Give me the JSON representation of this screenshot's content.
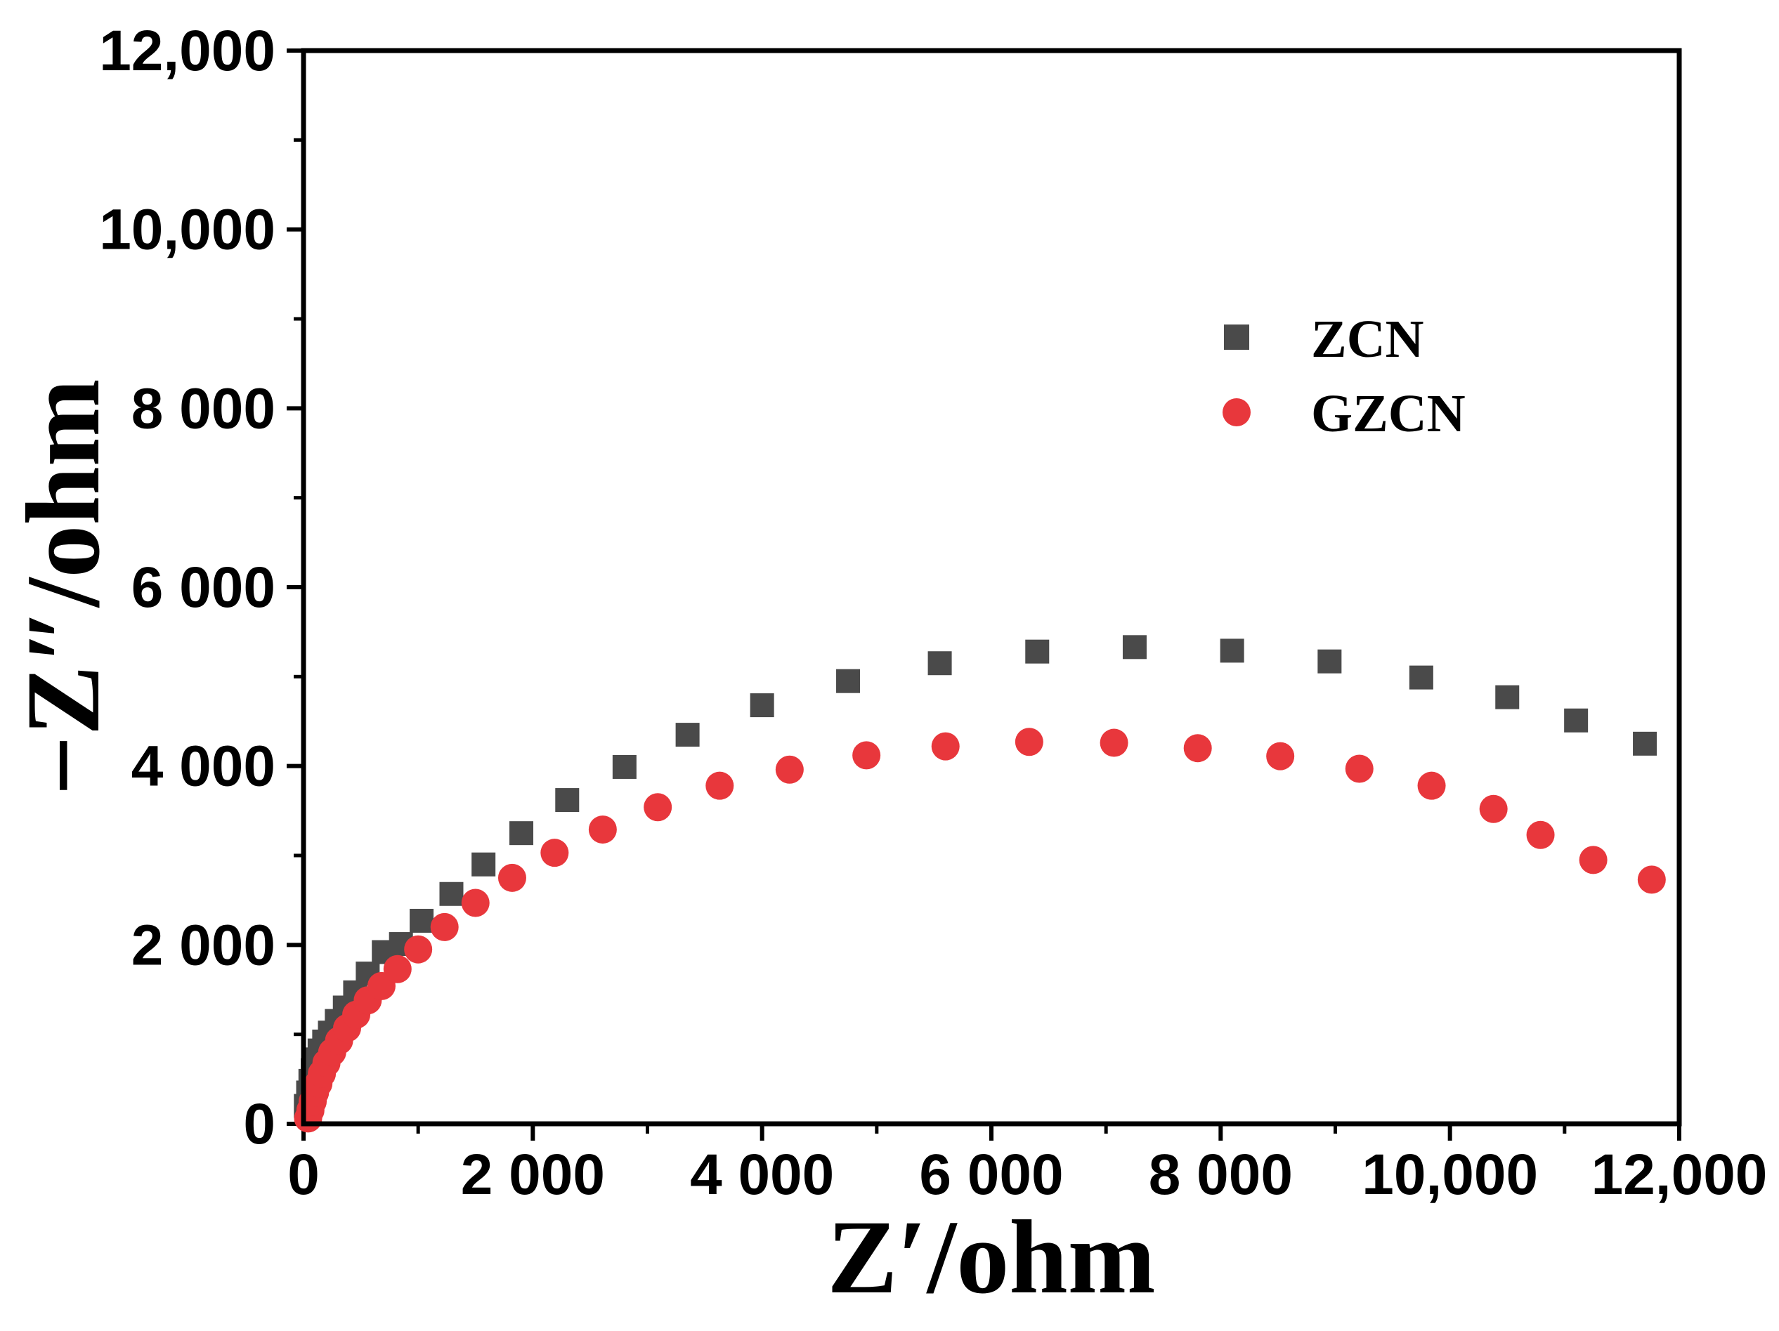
{
  "chart_data": {
    "type": "scatter",
    "title": "",
    "xlabel": "Z′/ohm",
    "ylabel": "−Z″/ohm",
    "xlim": [
      0,
      12000
    ],
    "ylim": [
      0,
      12000
    ],
    "x_ticks": [
      0,
      2000,
      4000,
      6000,
      8000,
      10000,
      12000
    ],
    "x_tick_labels": [
      "0",
      "2 000",
      "4 000",
      "6 000",
      "8 000",
      "10,000",
      "12,000"
    ],
    "y_ticks": [
      0,
      2000,
      4000,
      6000,
      8000,
      10000,
      12000
    ],
    "y_tick_labels": [
      "0",
      "2 000",
      "4 000",
      "6 000",
      "8 000",
      "10,000",
      "12,000"
    ],
    "grid": false,
    "legend_position": "upper-right",
    "series": [
      {
        "name": "ZCN",
        "marker": "square",
        "color": "#4a4a4a",
        "x": [
          20,
          40,
          60,
          80,
          110,
          140,
          180,
          230,
          290,
          360,
          450,
          560,
          700,
          850,
          1030,
          1290,
          1570,
          1900,
          2300,
          2800,
          3350,
          4000,
          4750,
          5550,
          6400,
          7250,
          8100,
          8950,
          9750,
          10500,
          11100,
          11700
        ],
        "y": [
          200,
          350,
          480,
          600,
          720,
          820,
          920,
          1020,
          1150,
          1300,
          1470,
          1680,
          1920,
          2010,
          2270,
          2570,
          2900,
          3250,
          3620,
          3990,
          4350,
          4680,
          4950,
          5150,
          5280,
          5330,
          5290,
          5170,
          4990,
          4770,
          4510,
          4250
        ]
      },
      {
        "name": "GZCN",
        "marker": "circle",
        "color": "#e8373c",
        "x": [
          40,
          60,
          80,
          100,
          130,
          160,
          200,
          250,
          310,
          380,
          460,
          560,
          680,
          820,
          1000,
          1230,
          1500,
          1820,
          2190,
          2610,
          3090,
          3630,
          4240,
          4910,
          5600,
          6330,
          7070,
          7800,
          8520,
          9210,
          9840,
          10380,
          10790,
          11250,
          11760
        ],
        "y": [
          60,
          150,
          250,
          350,
          450,
          560,
          680,
          800,
          930,
          1070,
          1220,
          1380,
          1540,
          1730,
          1950,
          2200,
          2470,
          2750,
          3030,
          3290,
          3540,
          3780,
          3960,
          4120,
          4220,
          4270,
          4260,
          4200,
          4110,
          3970,
          3780,
          3520,
          3230,
          2950,
          2730
        ]
      }
    ]
  }
}
